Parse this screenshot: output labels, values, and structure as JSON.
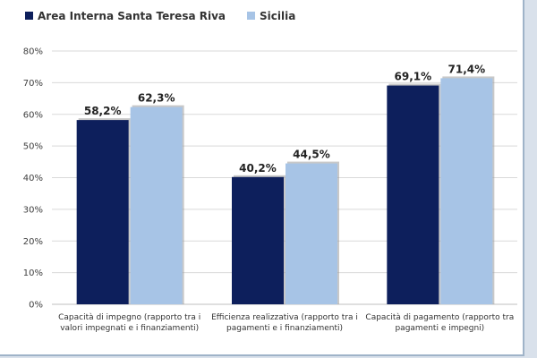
{
  "chart_data": {
    "type": "bar",
    "categories": [
      [
        "Capacità di impegno (rapporto tra i",
        "valori impegnati e i finanziamenti)"
      ],
      [
        "Efficienza realizzativa (rapporto tra i",
        "pagamenti e i finanziamenti)"
      ],
      [
        "Capacità di pagamento (rapporto tra",
        "pagamenti e impegni)"
      ]
    ],
    "series": [
      {
        "name": "Area Interna Santa Teresa Riva",
        "color": "#0d1f5c",
        "values": [
          58.2,
          40.2,
          69.1
        ],
        "labels": [
          "58,2%",
          "40,2%",
          "69,1%"
        ]
      },
      {
        "name": "Sicilia",
        "color": "#a7c4e6",
        "values": [
          62.3,
          44.5,
          71.4
        ],
        "labels": [
          "62,3%",
          "44,5%",
          "71,4%"
        ]
      }
    ],
    "ylim": [
      0,
      80
    ],
    "yticks": [
      "0%",
      "10%",
      "20%",
      "30%",
      "40%",
      "50%",
      "60%",
      "70%",
      "80%"
    ],
    "grid": true,
    "legend_position": "top-left",
    "title": "",
    "xlabel": "",
    "ylabel": ""
  }
}
